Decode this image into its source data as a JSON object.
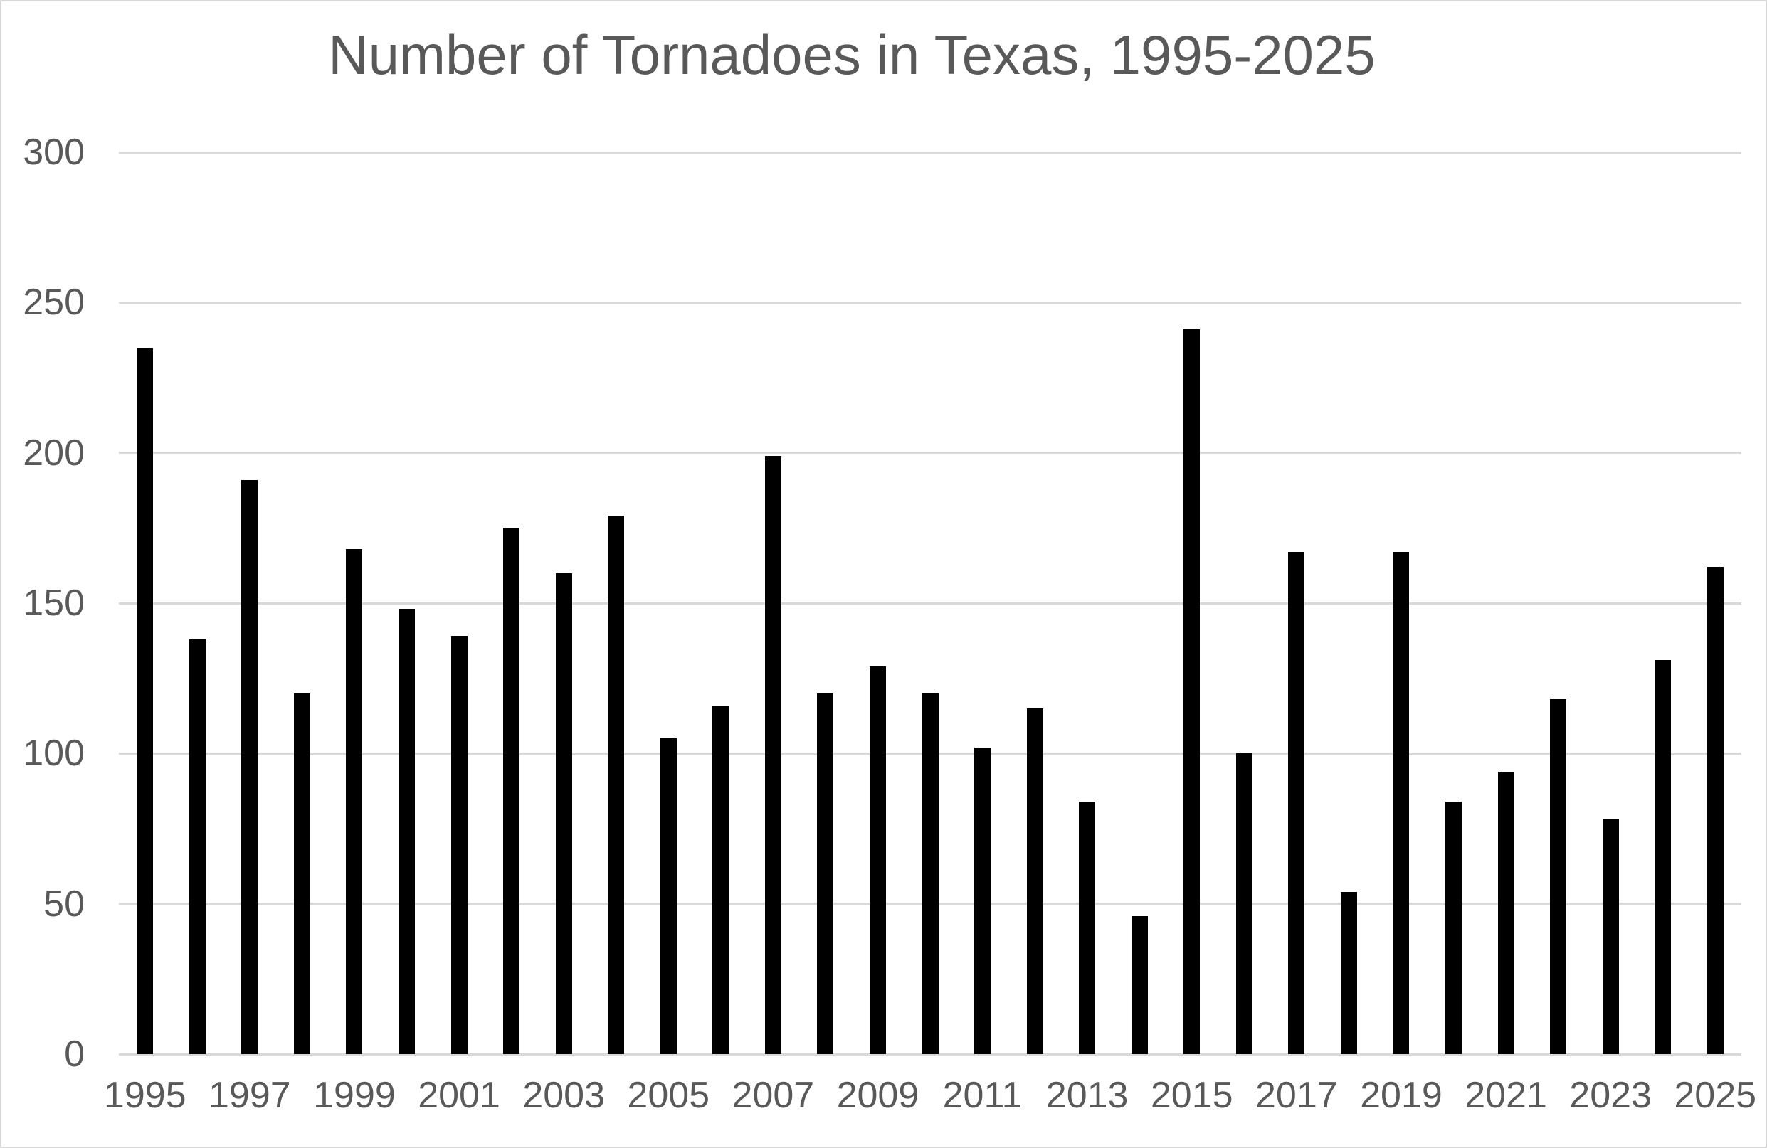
{
  "chart_data": {
    "type": "bar",
    "title": "Number of Tornadoes in Texas, 1995-2025",
    "xlabel": "",
    "ylabel": "",
    "categories": [
      1995,
      1996,
      1997,
      1998,
      1999,
      2000,
      2001,
      2002,
      2003,
      2004,
      2005,
      2006,
      2007,
      2008,
      2009,
      2010,
      2011,
      2012,
      2013,
      2014,
      2015,
      2016,
      2017,
      2018,
      2019,
      2020,
      2021,
      2022,
      2023,
      2024,
      2025
    ],
    "values": [
      235,
      138,
      191,
      120,
      168,
      148,
      139,
      175,
      160,
      179,
      105,
      116,
      199,
      120,
      129,
      120,
      102,
      115,
      84,
      46,
      241,
      100,
      167,
      54,
      167,
      84,
      94,
      118,
      78,
      131,
      162
    ],
    "ylim": [
      0,
      300
    ],
    "yticks": [
      0,
      50,
      100,
      150,
      200,
      250,
      300
    ],
    "y_tick_labels": [
      "0",
      "50",
      "100",
      "150",
      "200",
      "250",
      "300"
    ],
    "x_tick_labels": [
      "1995",
      "1997",
      "1999",
      "2001",
      "2003",
      "2005",
      "2007",
      "2009",
      "2011",
      "2013",
      "2015",
      "2017",
      "2019",
      "2021",
      "2023",
      "2025"
    ],
    "grid": "horizontal",
    "legend": "none",
    "bar_color": "#000000",
    "text_color": "#595959",
    "gridline_color": "#d9d9d9",
    "background_color": "#ffffff"
  }
}
